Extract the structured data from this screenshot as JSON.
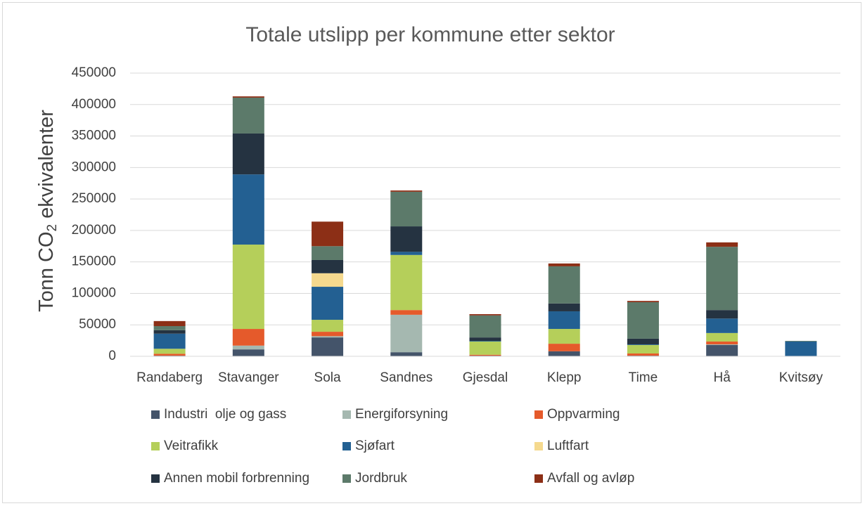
{
  "chart_data": {
    "type": "stacked_bar",
    "title": "Totale utslipp per kommune etter sektor",
    "y_label": {
      "text": "Tonn CO",
      "subscript": "2",
      "suffix": " ekvivalenter"
    },
    "categories": [
      "Randaberg",
      "Stavanger",
      "Sola",
      "Sandnes",
      "Gjesdal",
      "Klepp",
      "Time",
      "Hå",
      "Kvitsøy"
    ],
    "ylim": [
      0,
      450000
    ],
    "yticks": [
      0,
      50000,
      100000,
      150000,
      200000,
      250000,
      300000,
      350000,
      400000,
      450000
    ],
    "grid": true,
    "legend": "bottom",
    "series": [
      {
        "name": "Industri  olje og gass",
        "color": "#44546a",
        "values": [
          1000,
          11000,
          30000,
          6500,
          1000,
          8000,
          1000,
          18000,
          0
        ]
      },
      {
        "name": "Energiforsyning",
        "color": "#a5b8b0",
        "values": [
          0,
          6000,
          2000,
          59500,
          0,
          0,
          0,
          1000,
          0
        ]
      },
      {
        "name": "Oppvarming",
        "color": "#e55a2b",
        "values": [
          3000,
          26500,
          7000,
          7500,
          1500,
          12000,
          3500,
          4500,
          0
        ]
      },
      {
        "name": "Veitrafikk",
        "color": "#b5cf5a",
        "values": [
          8000,
          134000,
          19000,
          87500,
          21000,
          23500,
          13500,
          13500,
          0
        ]
      },
      {
        "name": "Sjøfart",
        "color": "#236092",
        "values": [
          24000,
          111500,
          52500,
          5000,
          1000,
          28000,
          1000,
          23000,
          23500
        ]
      },
      {
        "name": "Luftfart",
        "color": "#f5d98e",
        "values": [
          0,
          0,
          21500,
          0,
          0,
          0,
          0,
          0,
          0
        ]
      },
      {
        "name": "Annen mobil forbrenning",
        "color": "#253341",
        "values": [
          5500,
          65000,
          21000,
          40500,
          5500,
          12500,
          9000,
          13500,
          0
        ]
      },
      {
        "name": "Jordbruk",
        "color": "#5c7a6a",
        "values": [
          6500,
          57000,
          22000,
          55000,
          35000,
          59000,
          58000,
          100500,
          1000
        ]
      },
      {
        "name": "Avfall og avløp",
        "color": "#8c2f16",
        "values": [
          8000,
          2000,
          39000,
          2000,
          2000,
          4500,
          2000,
          7000,
          0
        ]
      }
    ]
  }
}
